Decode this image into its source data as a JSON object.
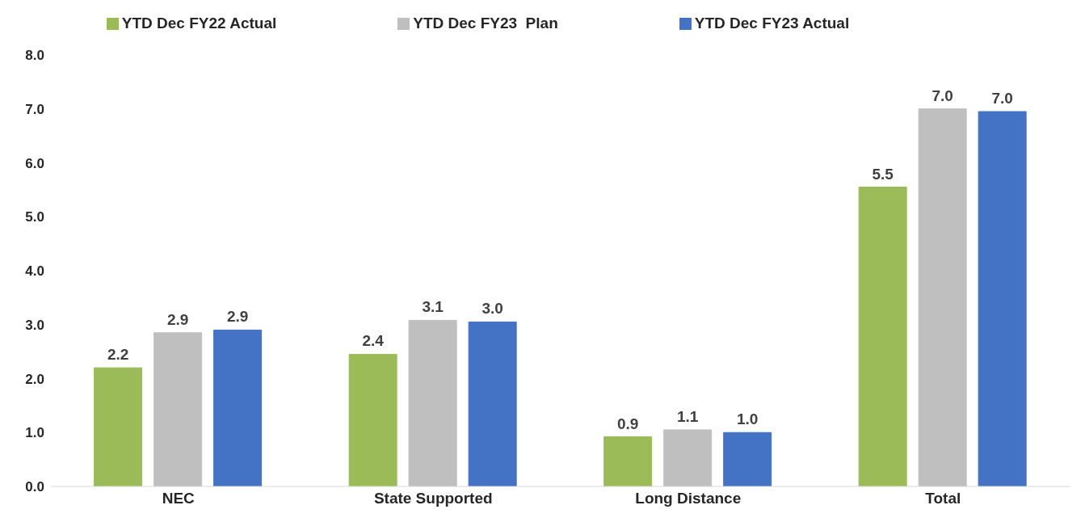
{
  "chart_data": {
    "type": "bar",
    "categories": [
      "NEC",
      "State Supported",
      "Long Distance",
      "Total"
    ],
    "series": [
      {
        "name": "YTD Dec FY22 Actual",
        "color": "#9bbb59",
        "values": [
          2.2,
          2.45,
          0.92,
          5.55
        ],
        "value_labels": [
          "2.2",
          "2.4",
          "0.9",
          "5.5"
        ]
      },
      {
        "name": "YTD Dec FY23  Plan",
        "color": "#bfbfbf",
        "values": [
          2.85,
          3.08,
          1.05,
          7.0
        ],
        "value_labels": [
          "2.9",
          "3.1",
          "1.1",
          "7.0"
        ]
      },
      {
        "name": "YTD Dec FY23 Actual",
        "color": "#4472c4",
        "values": [
          2.9,
          3.05,
          1.0,
          6.95
        ],
        "value_labels": [
          "2.9",
          "3.0",
          "1.0",
          "7.0"
        ]
      }
    ],
    "ylim": [
      0,
      8
    ],
    "yticks": [
      {
        "value": 0,
        "label": "0.0"
      },
      {
        "value": 1,
        "label": "1.0"
      },
      {
        "value": 2,
        "label": "2.0"
      },
      {
        "value": 3,
        "label": "3.0"
      },
      {
        "value": 4,
        "label": "4.0"
      },
      {
        "value": 5,
        "label": "5.0"
      },
      {
        "value": 6,
        "label": "6.0"
      },
      {
        "value": 7,
        "label": "7.0"
      },
      {
        "value": 8,
        "label": "8.0"
      }
    ],
    "grid": false,
    "legend": "top"
  }
}
